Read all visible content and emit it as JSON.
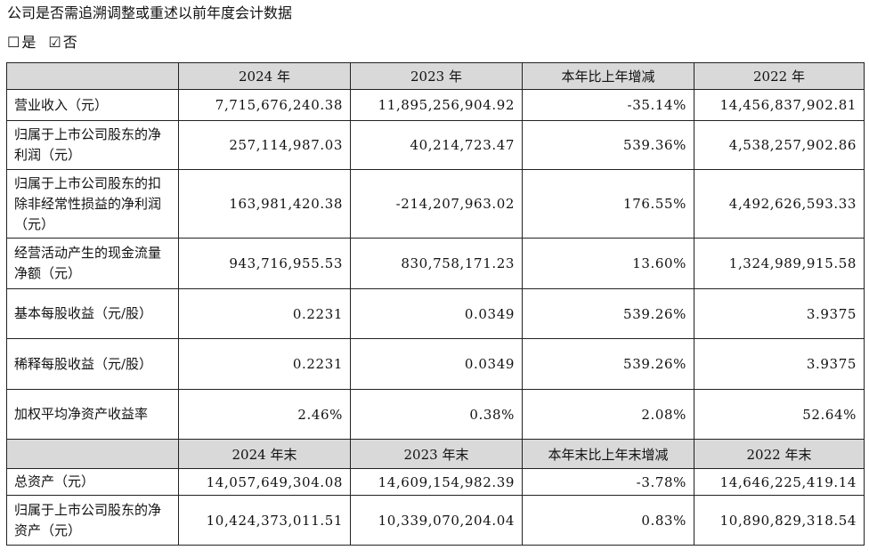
{
  "heading": "公司是否需追溯调整或重述以前年度会计数据",
  "options": [
    {
      "box": "☐",
      "label": "是"
    },
    {
      "box": "☑",
      "label": "否"
    }
  ],
  "table": {
    "header_top": [
      "",
      "2024 年",
      "2023 年",
      "本年比上年增减",
      "2022 年"
    ],
    "rows_top": [
      {
        "label": "营业收入（元）",
        "cells": [
          "7,715,676,240.38",
          "11,895,256,904.92",
          "-35.14%",
          "14,456,837,902.81"
        ]
      },
      {
        "label": "归属于上市公司股东的净利润（元）",
        "cells": [
          "257,114,987.03",
          "40,214,723.47",
          "539.36%",
          "4,538,257,902.86"
        ]
      },
      {
        "label": "归属于上市公司股东的扣除非经常性损益的净利润（元）",
        "cells": [
          "163,981,420.38",
          "-214,207,963.02",
          "176.55%",
          "4,492,626,593.33"
        ]
      },
      {
        "label": "经营活动产生的现金流量净额（元）",
        "cells": [
          "943,716,955.53",
          "830,758,171.23",
          "13.60%",
          "1,324,989,915.58"
        ]
      },
      {
        "label": "基本每股收益（元/股）",
        "cells": [
          "0.2231",
          "0.0349",
          "539.26%",
          "3.9375"
        ]
      },
      {
        "label": "稀释每股收益（元/股）",
        "cells": [
          "0.2231",
          "0.0349",
          "539.26%",
          "3.9375"
        ]
      },
      {
        "label": "加权平均净资产收益率",
        "cells": [
          "2.46%",
          "0.38%",
          "2.08%",
          "52.64%"
        ]
      }
    ],
    "header_bottom": [
      "",
      "2024 年末",
      "2023 年末",
      "本年末比上年末增减",
      "2022 年末"
    ],
    "rows_bottom": [
      {
        "label": "总资产（元）",
        "cells": [
          "14,057,649,304.08",
          "14,609,154,982.39",
          "-3.78%",
          "14,646,225,419.14"
        ]
      },
      {
        "label": "归属于上市公司股东的净资产（元）",
        "cells": [
          "10,424,373,011.51",
          "10,339,070,204.04",
          "0.83%",
          "10,890,829,318.54"
        ]
      }
    ]
  }
}
